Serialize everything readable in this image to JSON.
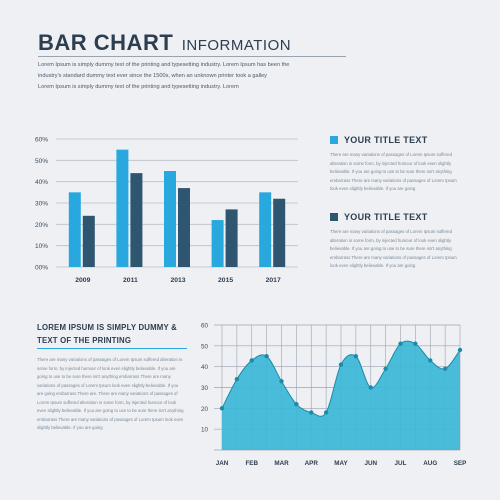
{
  "header": {
    "title_main": "BAR CHART",
    "title_sub": "INFORMATION",
    "intro_lines": [
      "Lorem Ipsum is simply dummy text of the printing and typesetting industry. Lorem Ipsum has been the",
      "industry's standard dummy text ever since the 1500s, when an unknown printer took a galley",
      "Lorem Ipsum is simply dummy text of the printing and typesetting industry. Lorem"
    ]
  },
  "legend": [
    {
      "title": "YOUR TITLE TEXT",
      "color": "#29a8df",
      "text": "There are many variations of passages of Lorem Ipsum suffered alteration in some form, by injected humour of look even slightly believable. If you are going to use to be sure there isn't anything embarrass There are many variations of passages of Lorem Ipsum look even slightly believable. If you are going"
    },
    {
      "title": "YOUR TITLE TEXT",
      "color": "#2f5670",
      "text": "There are many variations of passages of Lorem Ipsum suffered alteration in some form, by injected humour of look even slightly believable. If you are going to use to be sure there isn't anything embarrass There are many variations of passages of Lorem Ipsum look even slightly believable. If you are going"
    }
  ],
  "side": {
    "title": "LOREM IPSUM IS SIMPLY DUMMY & TEXT OF THE PRINTING",
    "text": "There are many variations of passages of Lorem Ipsum suffered alteration in some form, by injected humour of look even slightly believable. If you are going to use to be sure there isn't anything embarrass There are many variations of passages of Lorem Ipsum look even slightly believable. If you are going embarrass There are. There are many variations of passages of Lorem Ipsum suffered alteration in some form, by injected humour of look even slightly believable. If you are going to use to be sure there isn't anything embarrass There are many variations of passages of Lorem Ipsum look even slightly believable. If you are going"
  },
  "chart_data": [
    {
      "type": "bar",
      "categories": [
        "2009",
        "2011",
        "2013",
        "2015",
        "2017"
      ],
      "series": [
        {
          "values": [
            35,
            55,
            45,
            22,
            35
          ],
          "color": "#29a8df"
        },
        {
          "values": [
            24,
            44,
            37,
            27,
            32
          ],
          "color": "#2f5670"
        }
      ],
      "ylim": [
        0,
        60
      ],
      "yticks": [
        0,
        10,
        20,
        30,
        40,
        50,
        60
      ],
      "ytick_labels": [
        "00%",
        "10%",
        "20%",
        "30%",
        "40%",
        "50%",
        "60%"
      ],
      "grid": true
    },
    {
      "type": "area",
      "categories": [
        "JAN",
        "FEB",
        "MAR",
        "APR",
        "MAY",
        "JUN",
        "JUL",
        "AUG",
        "SEP"
      ],
      "x": [
        0,
        0.5,
        1,
        1.5,
        2,
        2.5,
        3,
        3.5,
        4,
        4.5,
        5,
        5.5,
        6,
        6.5,
        7,
        7.5,
        8
      ],
      "values": [
        20,
        34,
        43,
        45,
        33,
        22,
        18,
        18,
        41,
        45,
        30,
        39,
        51,
        51,
        43,
        39,
        48
      ],
      "ylim": [
        0,
        60
      ],
      "yticks": [
        10,
        20,
        30,
        40,
        50,
        60
      ],
      "color": "#3bb7d6",
      "grid": true
    }
  ]
}
